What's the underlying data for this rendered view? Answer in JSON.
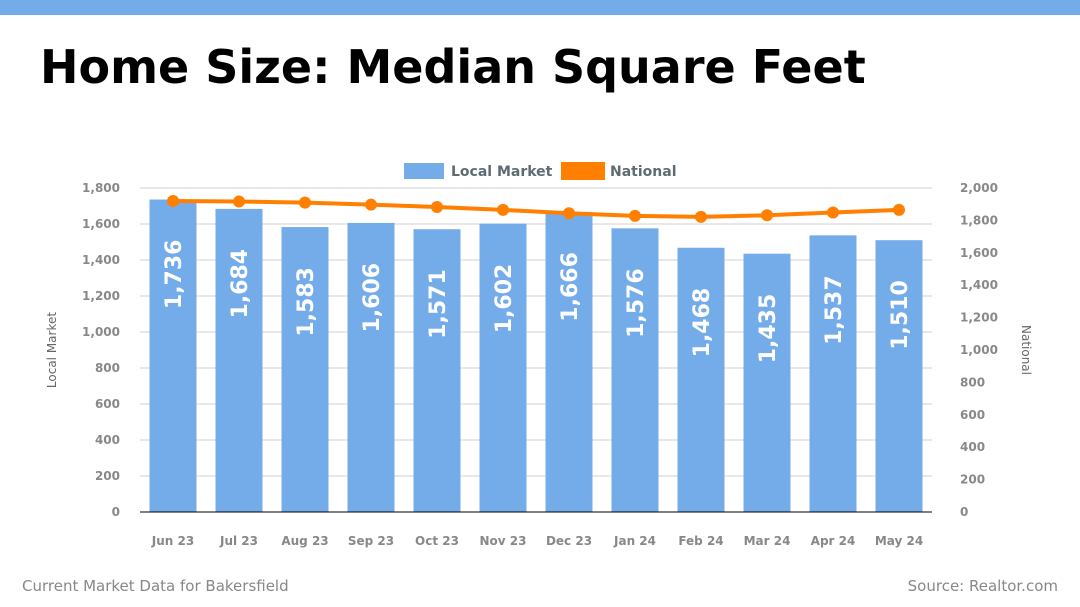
{
  "header": {
    "title": "Home Size: Median Square Feet"
  },
  "footer": {
    "left": "Current Market Data for Bakersfield",
    "right": "Source: Realtor.com"
  },
  "colors": {
    "bar": "#74acea",
    "line": "#ff8000",
    "top_bar": "#74acea",
    "grid": "#d0d0d0",
    "axis_text": "#888888",
    "legend_text": "#5f6b73"
  },
  "chart_data": {
    "type": "bar",
    "categories": [
      "Jun 23",
      "Jul 23",
      "Aug 23",
      "Sep 23",
      "Oct 23",
      "Nov 23",
      "Dec 23",
      "Jan 24",
      "Feb 24",
      "Mar 24",
      "Apr 24",
      "May 24"
    ],
    "series": [
      {
        "name": "Local Market",
        "type": "bar",
        "axis": "left",
        "values": [
          1736,
          1684,
          1583,
          1606,
          1571,
          1602,
          1666,
          1576,
          1468,
          1435,
          1537,
          1510
        ],
        "labels": [
          "1,736",
          "1,684",
          "1,583",
          "1,606",
          "1,571",
          "1,602",
          "1,666",
          "1,576",
          "1,468",
          "1,435",
          "1,537",
          "1,510"
        ]
      },
      {
        "name": "National",
        "type": "line",
        "axis": "right",
        "values": [
          1920,
          1917,
          1910,
          1897,
          1883,
          1865,
          1844,
          1828,
          1822,
          1832,
          1849,
          1865
        ]
      }
    ],
    "ylabel": "Local Market",
    "y2label": "National",
    "ylim": [
      0,
      1800
    ],
    "y2lim": [
      0,
      2000
    ],
    "yticks": [
      "0",
      "200",
      "400",
      "600",
      "800",
      "1,000",
      "1,200",
      "1,400",
      "1,600",
      "1,800"
    ],
    "y2ticks": [
      "0",
      "200",
      "400",
      "600",
      "800",
      "1,000",
      "1,200",
      "1,400",
      "1,600",
      "1,800",
      "2,000"
    ],
    "grid": true,
    "legend": "top-center"
  }
}
